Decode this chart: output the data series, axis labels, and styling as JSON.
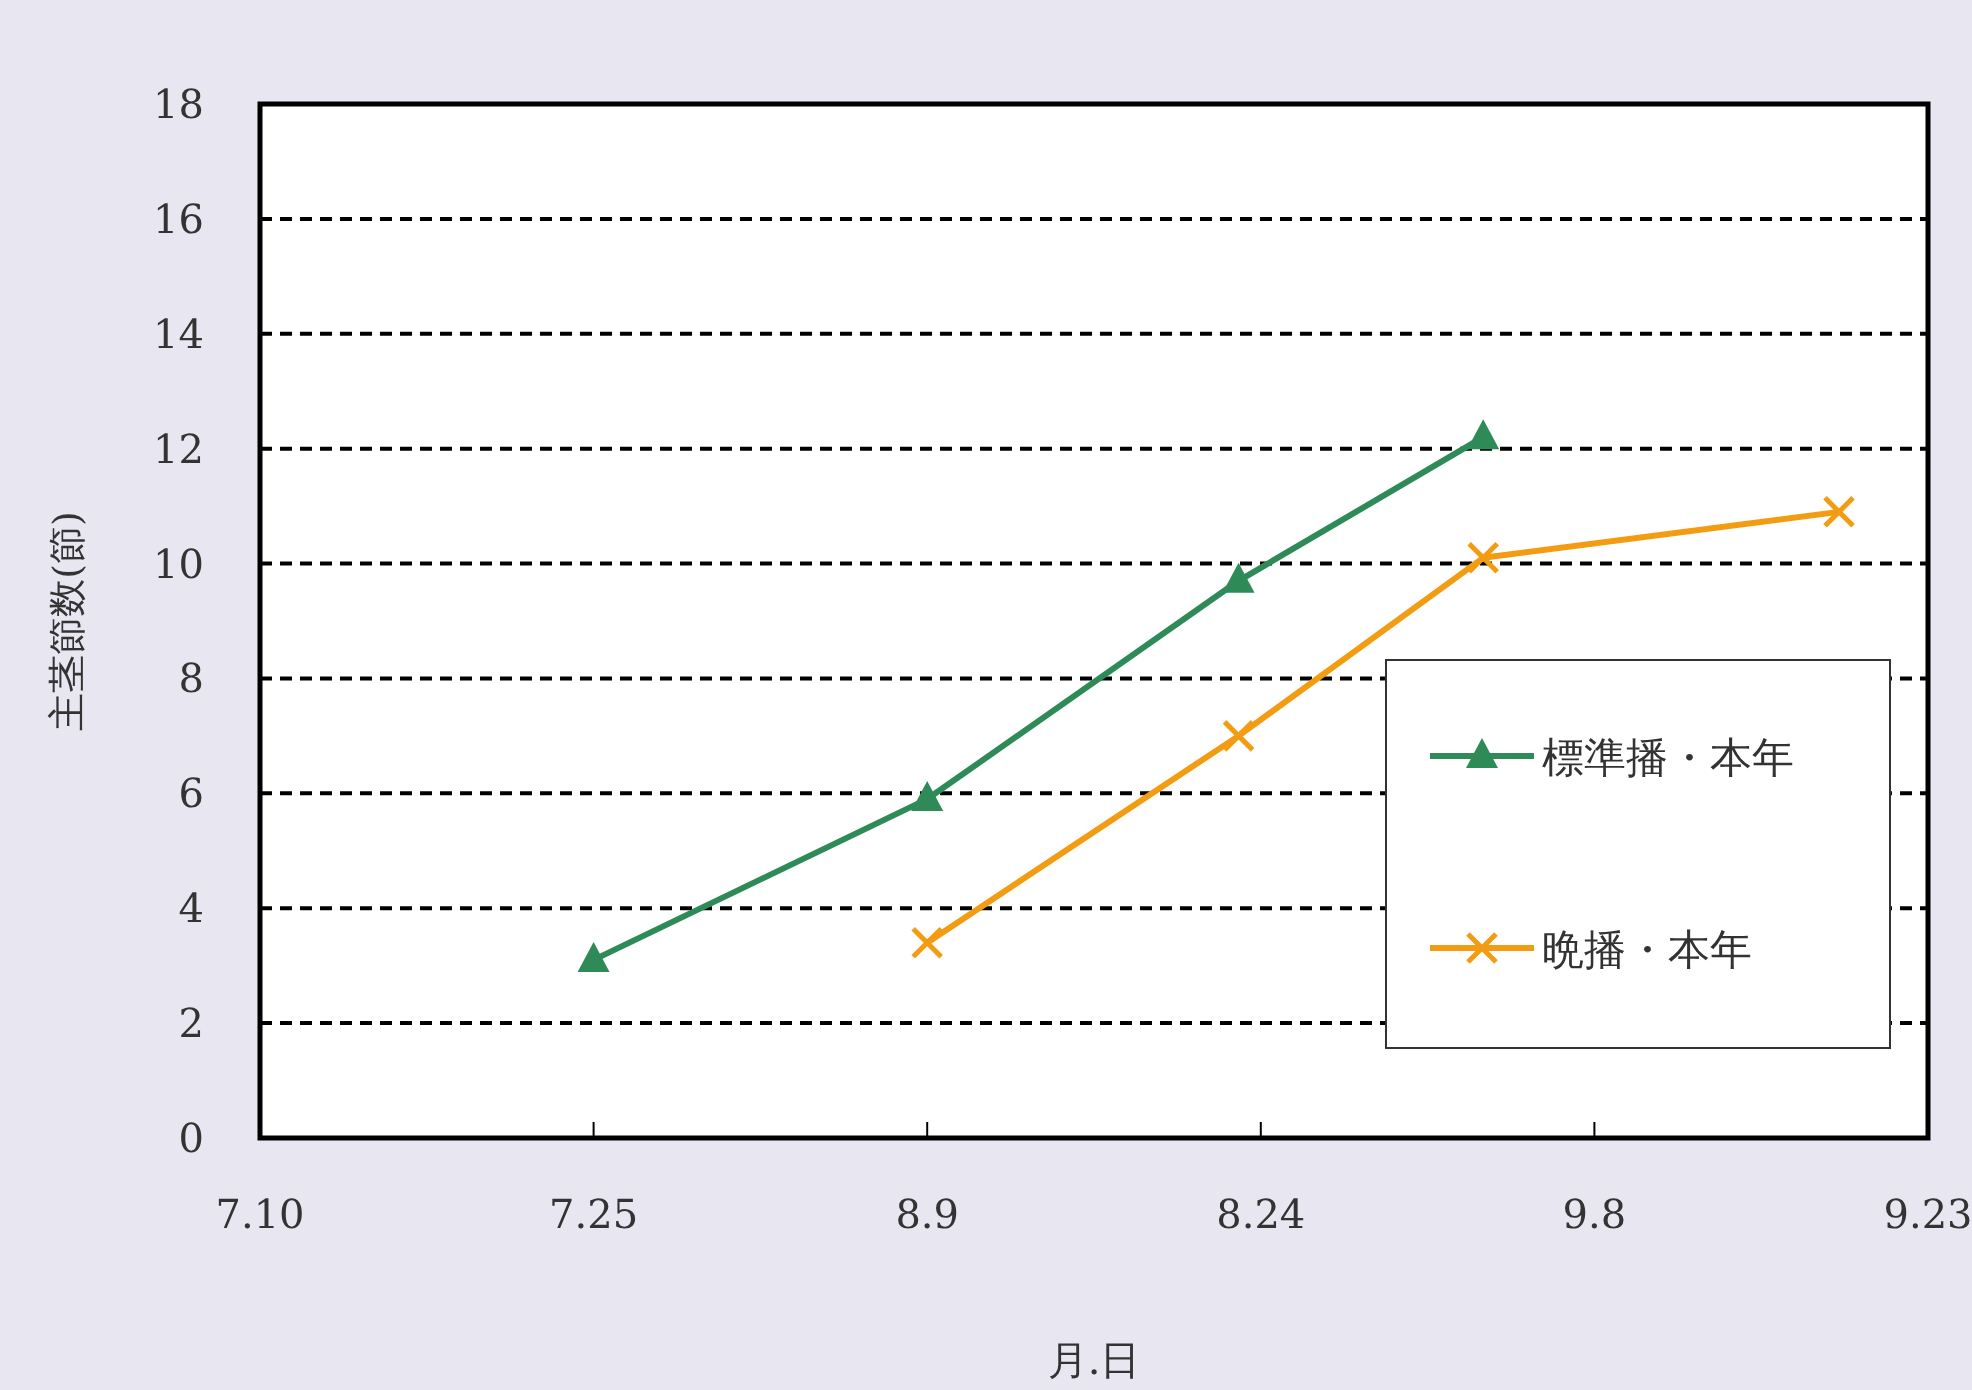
{
  "chart_data": {
    "type": "line",
    "xlabel": "月.日",
    "ylabel": "主茎節数(節)",
    "xlim": [
      "--07-10",
      "--09-23"
    ],
    "xticks": [
      {
        "value": "--07-10",
        "label": "7.10"
      },
      {
        "value": "--07-25",
        "label": "7.25"
      },
      {
        "value": "--08-09",
        "label": "8.9"
      },
      {
        "value": "--08-24",
        "label": "8.24"
      },
      {
        "value": "--09-08",
        "label": "9.8"
      },
      {
        "value": "--09-23",
        "label": "9.23"
      }
    ],
    "ylim": [
      0,
      18
    ],
    "yticks": [
      0,
      2,
      4,
      6,
      8,
      10,
      12,
      14,
      16,
      18
    ],
    "grid": "y",
    "legend": "right",
    "series": [
      {
        "name": "標準播・本年",
        "color": "#2e8b57",
        "marker": "triangle",
        "x": [
          "--07-25",
          "--08-09",
          "--08-23",
          "--09-03"
        ],
        "values": [
          3.1,
          5.9,
          9.7,
          12.2
        ]
      },
      {
        "name": "晩播・本年",
        "color": "#f39c12",
        "marker": "cross",
        "x": [
          "--08-09",
          "--08-23",
          "--09-03",
          "--09-19"
        ],
        "values": [
          3.4,
          7.0,
          10.1,
          10.9
        ]
      }
    ]
  }
}
